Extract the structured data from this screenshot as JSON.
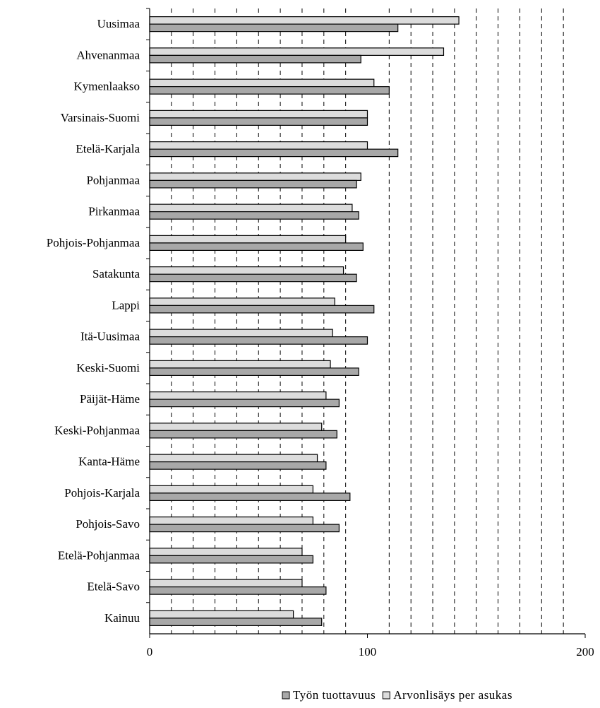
{
  "chart_data": {
    "type": "hbar",
    "categories": [
      "Uusimaa",
      "Ahvenanmaa",
      "Kymenlaakso",
      "Varsinais-Suomi",
      "Etelä-Karjala",
      "Pohjanmaa",
      "Pirkanmaa",
      "Pohjois-Pohjanmaa",
      "Satakunta",
      "Lappi",
      "Itä-Uusimaa",
      "Keski-Suomi",
      "Päijät-Häme",
      "Keski-Pohjanmaa",
      "Kanta-Häme",
      "Pohjois-Karjala",
      "Pohjois-Savo",
      "Etelä-Pohjanmaa",
      "Etelä-Savo",
      "Kainuu"
    ],
    "series": [
      {
        "name": "Työn tuottavuus",
        "color": "#a8a8a8",
        "values": [
          114,
          97,
          110,
          100,
          114,
          95,
          96,
          98,
          95,
          103,
          100,
          96,
          87,
          86,
          81,
          92,
          87,
          75,
          81,
          79
        ]
      },
      {
        "name": "Arvonlisäys per asukas",
        "color": "#dcdcdc",
        "values": [
          142,
          135,
          103,
          100,
          100,
          97,
          93,
          90,
          89,
          85,
          84,
          83,
          81,
          79,
          77,
          75,
          75,
          70,
          70,
          66
        ]
      }
    ],
    "xlim": [
      0,
      200
    ],
    "xticks": [
      0,
      100,
      200
    ],
    "xminorticks": [
      10,
      20,
      30,
      40,
      50,
      60,
      70,
      80,
      90,
      110,
      120,
      130,
      140,
      150,
      160,
      170,
      180,
      190
    ],
    "grid": true,
    "legend": "bottom"
  }
}
